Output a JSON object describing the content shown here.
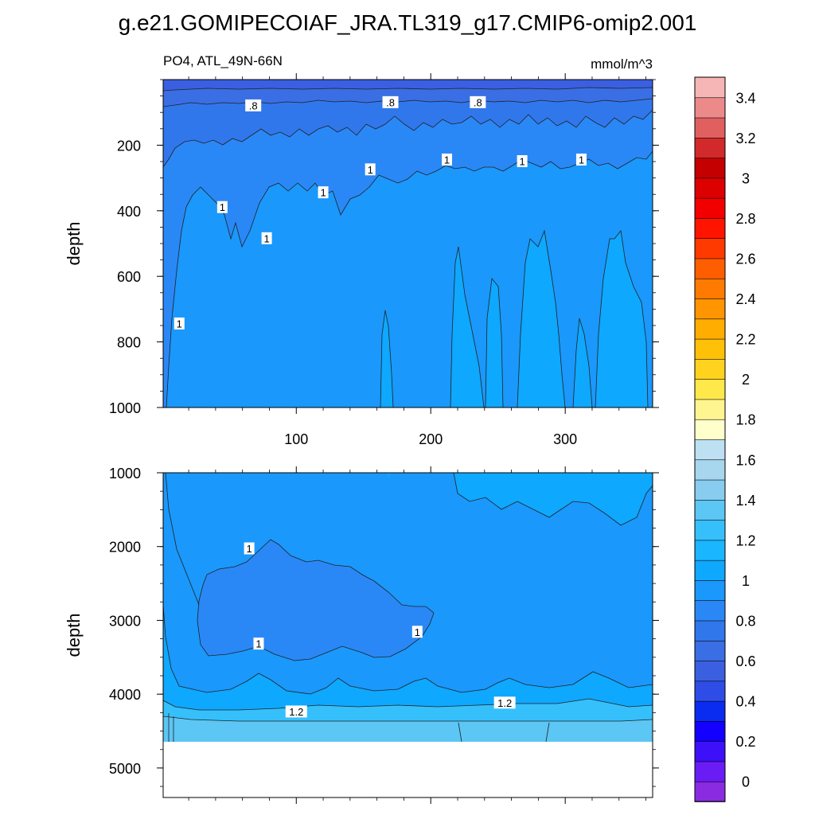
{
  "title": "g.e21.GOMIPECOIAF_JRA.TL319_g17.CMIP6-omip2.001",
  "colorbar": {
    "levels": [
      0,
      0.1,
      0.2,
      0.3,
      0.4,
      0.5,
      0.6,
      0.7,
      0.8,
      0.9,
      1.0,
      1.1,
      1.2,
      1.3,
      1.4,
      1.5,
      1.6,
      1.7,
      1.8,
      1.9,
      2.0,
      2.1,
      2.2,
      2.3,
      2.4,
      2.5,
      2.6,
      2.7,
      2.8,
      2.9,
      3.0,
      3.1,
      3.2,
      3.3,
      3.4,
      3.5
    ],
    "labels": [
      "0",
      "0.2",
      "0.4",
      "0.6",
      "0.8",
      "1",
      "1.2",
      "1.4",
      "1.6",
      "1.8",
      "2",
      "2.2",
      "2.4",
      "2.6",
      "2.8",
      "3",
      "3.2",
      "3.4"
    ],
    "colors": [
      "#8a2be2",
      "#6a1cf5",
      "#3e10fa",
      "#1400ff",
      "#0a2cf0",
      "#2f4de6",
      "#3a5fe0",
      "#3a6ee4",
      "#3177ec",
      "#2a88f6",
      "#1a98fc",
      "#0ea8ff",
      "#1ab6ff",
      "#36c0fb",
      "#5cc6f4",
      "#88ccef",
      "#a8d6ef",
      "#bde0f3",
      "#ffffcc",
      "#fff590",
      "#ffe84a",
      "#ffd21e",
      "#ffc107",
      "#ffad00",
      "#ff9500",
      "#ff7a00",
      "#ff5e00",
      "#ff3a00",
      "#ff1400",
      "#f20000",
      "#dd0000",
      "#c40000",
      "#d22a2a",
      "#e06060",
      "#ec8a8a",
      "#f7b6b6"
    ]
  },
  "chart_data": [
    {
      "type": "contour",
      "title": "PO4, ATL_49N-66N",
      "units": "mmol/m^3",
      "xlabel": "",
      "ylabel": "depth",
      "xlim": [
        1,
        365
      ],
      "ylim": [
        0,
        1000
      ],
      "y_reversed": true,
      "xticks": [
        100,
        200,
        300
      ],
      "yticks": [
        200,
        400,
        600,
        800,
        1000
      ],
      "contour_labels": [
        {
          "text": ".8",
          "x": 68,
          "y": 80
        },
        {
          "text": ".8",
          "x": 170,
          "y": 70
        },
        {
          "text": ".8",
          "x": 235,
          "y": 70
        },
        {
          "text": "1",
          "x": 155,
          "y": 275
        },
        {
          "text": "1",
          "x": 212,
          "y": 245
        },
        {
          "text": "1",
          "x": 268,
          "y": 250
        },
        {
          "text": "1",
          "x": 312,
          "y": 245
        },
        {
          "text": "1",
          "x": 120,
          "y": 345
        },
        {
          "text": "1",
          "x": 45,
          "y": 390
        },
        {
          "text": "1",
          "x": 78,
          "y": 485
        },
        {
          "text": "1",
          "x": 13,
          "y": 745
        }
      ]
    },
    {
      "type": "contour",
      "title": "",
      "units": "",
      "xlabel": "",
      "ylabel": "depth",
      "xlim": [
        1,
        365
      ],
      "ylim": [
        1000,
        5400
      ],
      "y_reversed": true,
      "yticks": [
        1000,
        2000,
        3000,
        4000,
        5000
      ],
      "data_bottom_depth": 4620,
      "contour_labels": [
        {
          "text": "1",
          "x": 65,
          "y": 2030
        },
        {
          "text": "1",
          "x": 72,
          "y": 3320
        },
        {
          "text": "1",
          "x": 190,
          "y": 3160
        },
        {
          "text": "1.2",
          "x": 100,
          "y": 4240
        },
        {
          "text": "1.2",
          "x": 255,
          "y": 4120
        }
      ]
    }
  ]
}
